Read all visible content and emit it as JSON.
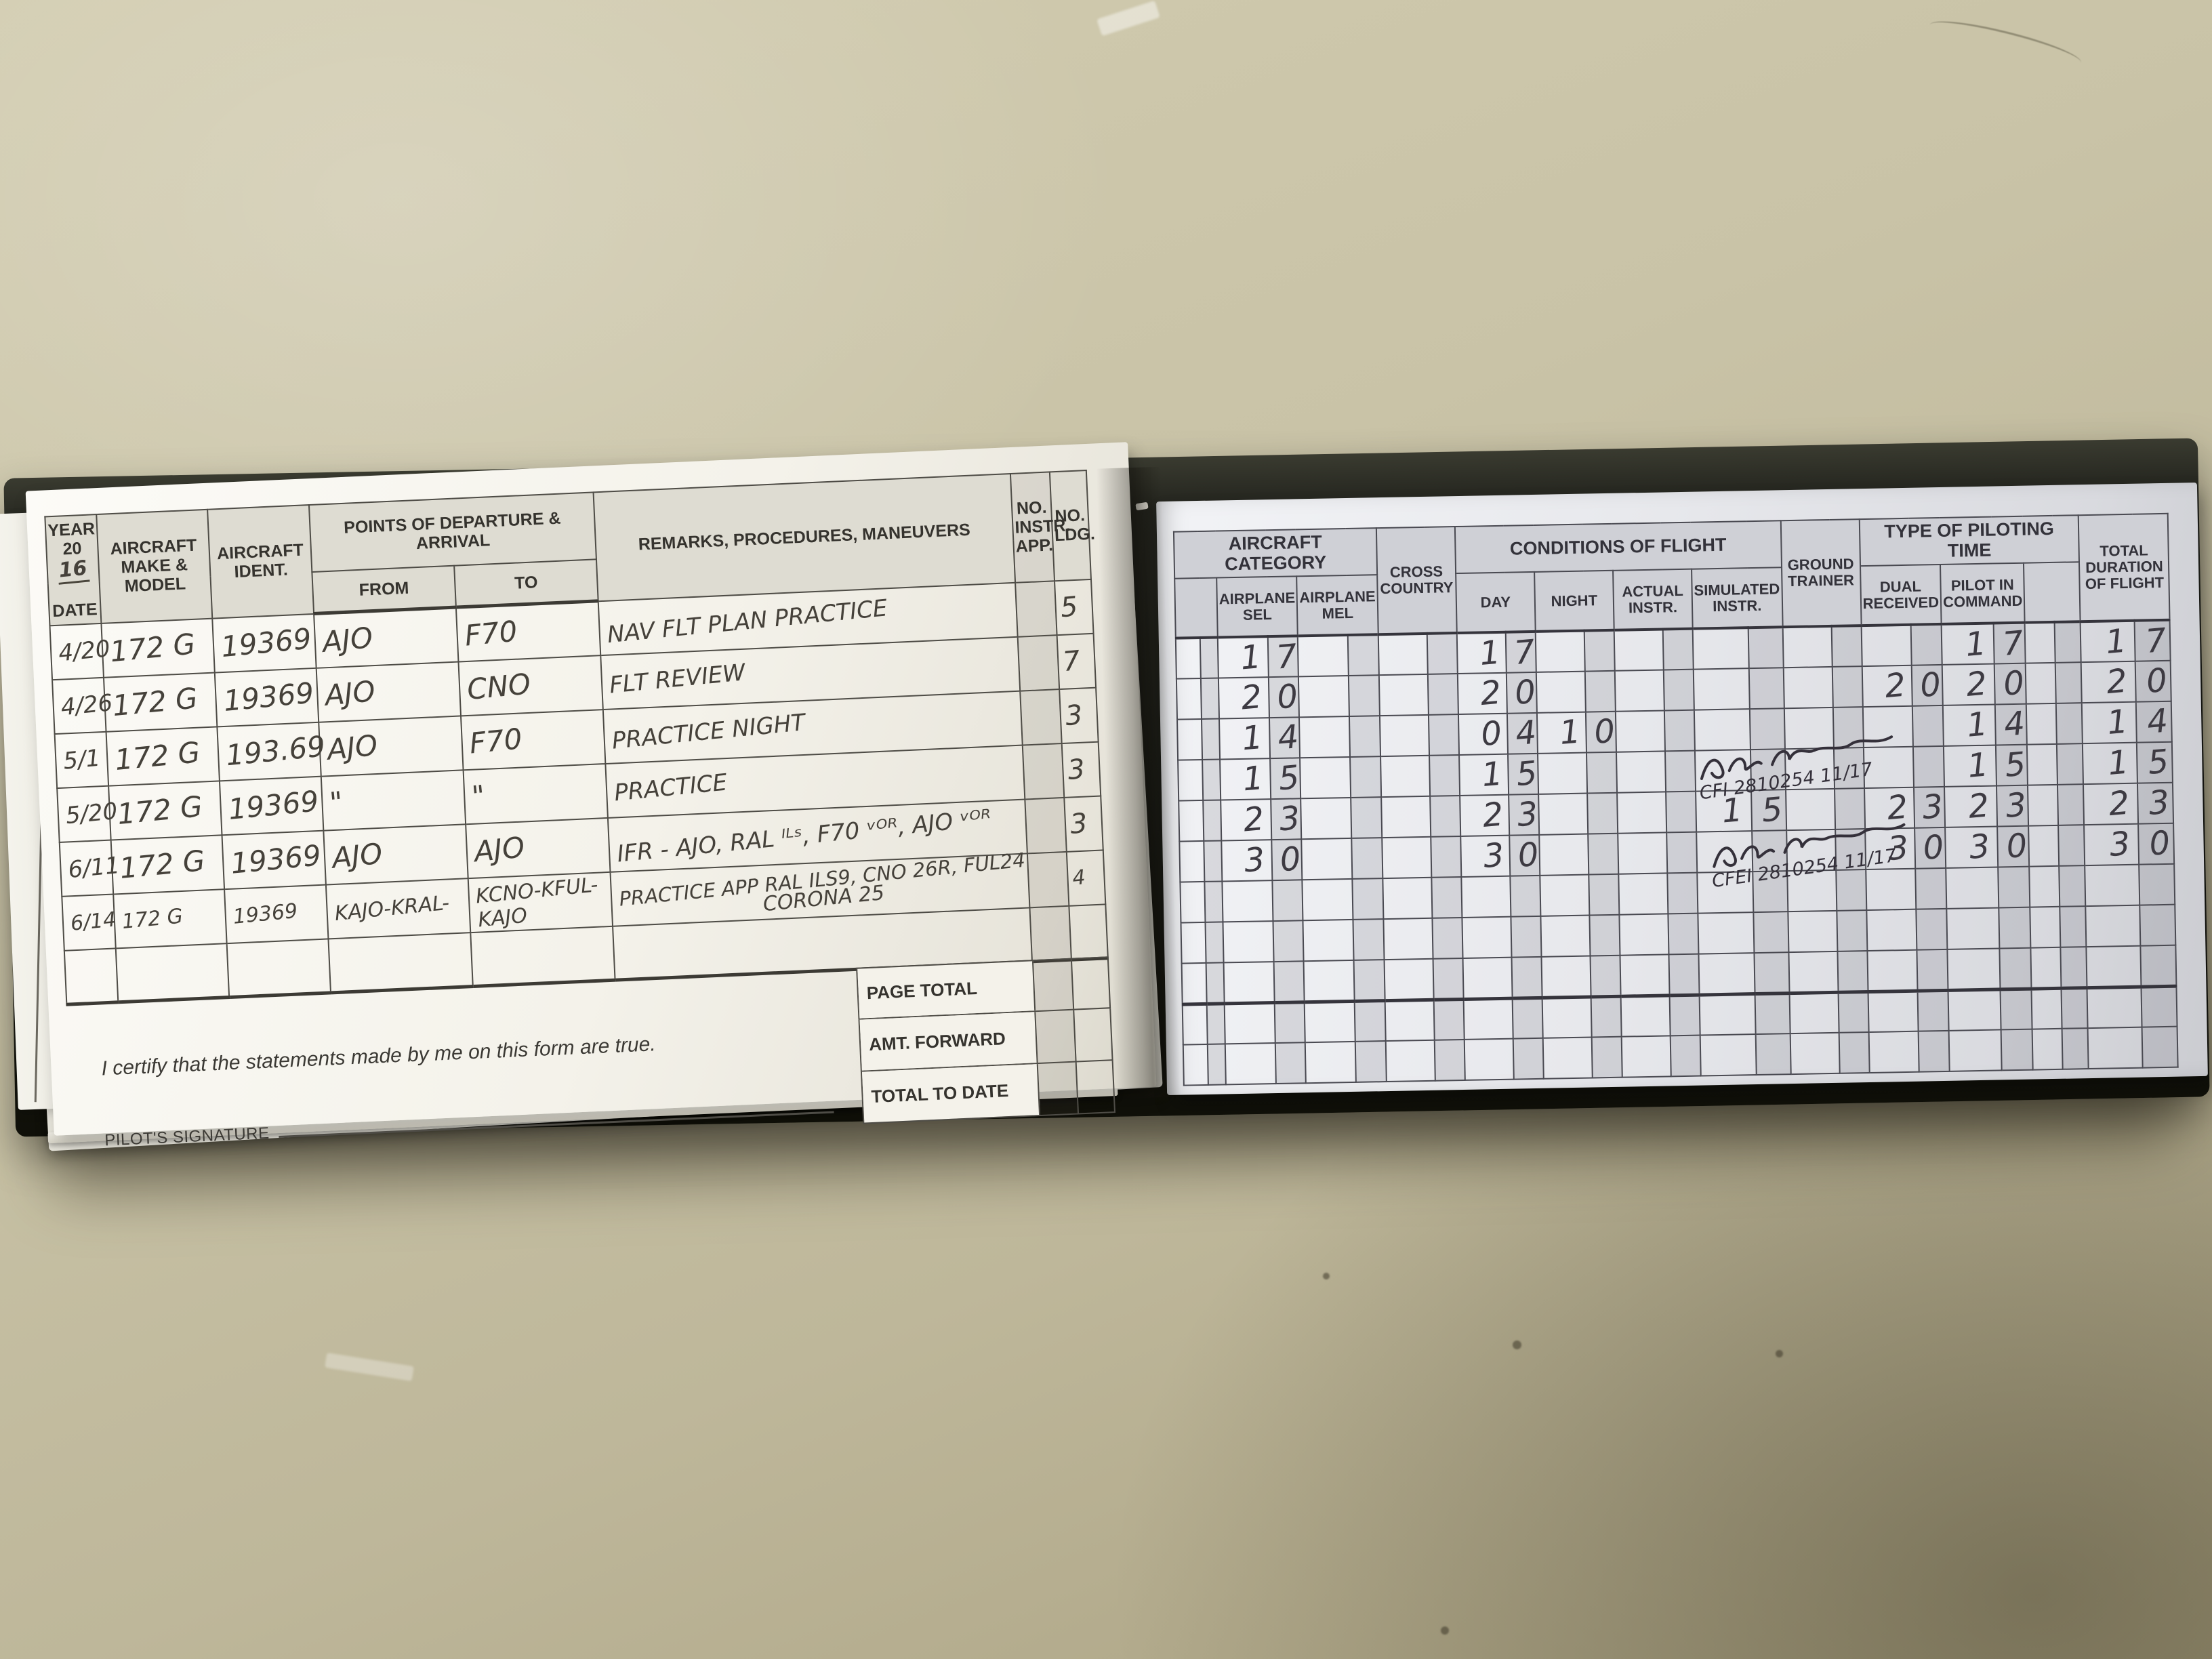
{
  "colors": {
    "desk": "#c9c3a7",
    "cover": "#181914",
    "left_page": "#f4f2ea",
    "right_page": "#e7e8ec",
    "ink": "#45413a"
  },
  "left_page": {
    "header": {
      "year_label": "YEAR",
      "year_prefix": "20",
      "year_written": "16",
      "date_label": "DATE",
      "make_model": "AIRCRAFT MAKE & MODEL",
      "ident": "AIRCRAFT IDENT.",
      "departure_arrival": "POINTS OF DEPARTURE & ARRIVAL",
      "from": "FROM",
      "to": "TO",
      "remarks": "REMARKS, PROCEDURES, MANEUVERS",
      "no_instr_app": "NO. INSTR. APP.",
      "no_ldg": "NO. LDG."
    },
    "rows": [
      {
        "date": "4/20",
        "model": "172 G",
        "ident": "19369",
        "from": "AJO",
        "to": "F70",
        "remarks": "NAV FLT PLAN PRACTICE",
        "instr": "",
        "ldg": "5"
      },
      {
        "date": "4/26",
        "model": "172 G",
        "ident": "19369",
        "from": "AJO",
        "to": "CNO",
        "remarks": "FLT REVIEW",
        "instr": "",
        "ldg": "7"
      },
      {
        "date": "5/1",
        "model": "172 G",
        "ident": "193.69",
        "from": "AJO",
        "to": "F70",
        "remarks": "PRACTICE NIGHT",
        "instr": "",
        "ldg": "3"
      },
      {
        "date": "5/20",
        "model": "172 G",
        "ident": "19369",
        "from": "\"",
        "to": "\"",
        "remarks": "PRACTICE",
        "instr": "",
        "ldg": "3"
      },
      {
        "date": "6/11",
        "model": "172 G",
        "ident": "19369",
        "from": "AJO",
        "to": "AJO",
        "remarks": "IFR - AJO, RAL ᴵᴸˢ, F70 ᵛᴼᴿ, AJO ᵛᴼᴿ",
        "instr": "",
        "ldg": "3"
      },
      {
        "date": "6/14",
        "model": "172 G",
        "ident": "19369",
        "from": "KAJO-KRAL-",
        "to": "KCNO-KFUL-KAJO",
        "remarks": "PRACTICE APP RAL ILS9, CNO 26R, FUL24",
        "remarks2": "CORONA 25",
        "instr": "",
        "ldg": "4"
      }
    ],
    "footer": {
      "certify": "I certify that the statements made by me on this form are true.",
      "signature_label": "PILOT'S SIGNATURE",
      "page_total": "PAGE TOTAL",
      "amt_forward": "AMT. FORWARD",
      "total_to_date": "TOTAL TO DATE"
    },
    "under_page_letters": [
      "Y",
      "20",
      "D"
    ]
  },
  "right_page": {
    "groups": {
      "aircraft_category": "AIRCRAFT CATEGORY",
      "conditions_of_flight": "CONDITIONS OF FLIGHT",
      "type_of_piloting_time": "TYPE OF PILOTING TIME"
    },
    "columns": {
      "airplane_sel": "AIRPLANE SEL",
      "airplane_mel": "AIRPLANE MEL",
      "cross_country": "CROSS COUNTRY",
      "day": "DAY",
      "night": "NIGHT",
      "actual_instr": "ACTUAL INSTR.",
      "simulated_instr": "SIMULATED INSTR.",
      "ground_trainer": "GROUND TRAINER",
      "dual_received": "DUAL RECEIVED",
      "pilot_in_command": "PILOT IN COMMAND",
      "total_duration": "TOTAL DURATION OF FLIGHT"
    },
    "rows": [
      {
        "sel": "17",
        "day": "17",
        "pic": "17",
        "total": "17"
      },
      {
        "sel": "20",
        "day": "20",
        "dual": "20",
        "pic": "20",
        "total": "20"
      },
      {
        "sel": "14",
        "day": "04",
        "night": "10",
        "pic": "14",
        "total": "14"
      },
      {
        "sel": "15",
        "day": "15",
        "pic": "15",
        "total": "15"
      },
      {
        "sel": "23",
        "day": "23",
        "sim": "15",
        "dual": "23",
        "pic": "23",
        "total": "23",
        "sig": 0
      },
      {
        "sel": "30",
        "day": "30",
        "dual": "30",
        "pic": "30",
        "total": "30",
        "sig": 1
      }
    ],
    "signatures": [
      {
        "cert": "CFI 2810254 11/17"
      },
      {
        "cert": "CFEI 2810254 11/17"
      }
    ]
  }
}
